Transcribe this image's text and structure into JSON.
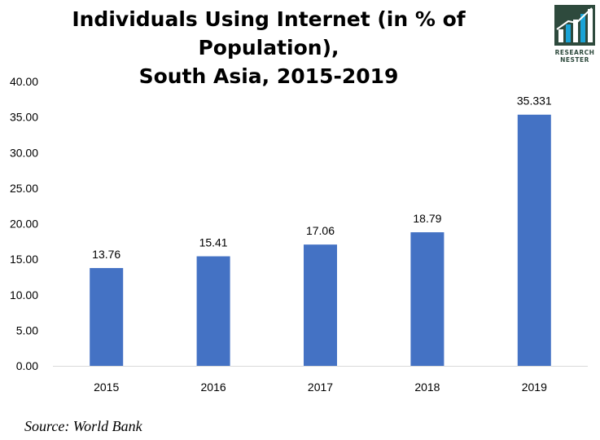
{
  "chart_data": {
    "type": "bar",
    "title_line1": "Individuals Using Internet (in % of Population),",
    "title_line2": "South Asia, 2015-2019",
    "categories": [
      "2015",
      "2016",
      "2017",
      "2018",
      "2019"
    ],
    "values": [
      13.76,
      15.41,
      17.06,
      18.79,
      35.331
    ],
    "value_labels": [
      "13.76",
      "15.41",
      "17.06",
      "18.79",
      "35.331"
    ],
    "y_ticks": [
      "0.00",
      "5.00",
      "10.00",
      "15.00",
      "20.00",
      "25.00",
      "30.00",
      "35.00",
      "40.00"
    ],
    "ylim": [
      0,
      40
    ],
    "xlabel": "",
    "ylabel": "",
    "grid": false,
    "bar_color": "#4472c4"
  },
  "source": "Source: World Bank",
  "logo": {
    "line1": "RESEARCH",
    "line2": "NESTER",
    "colors": {
      "dark": "#2e4a3d",
      "accent": "#1aa3d6"
    }
  }
}
